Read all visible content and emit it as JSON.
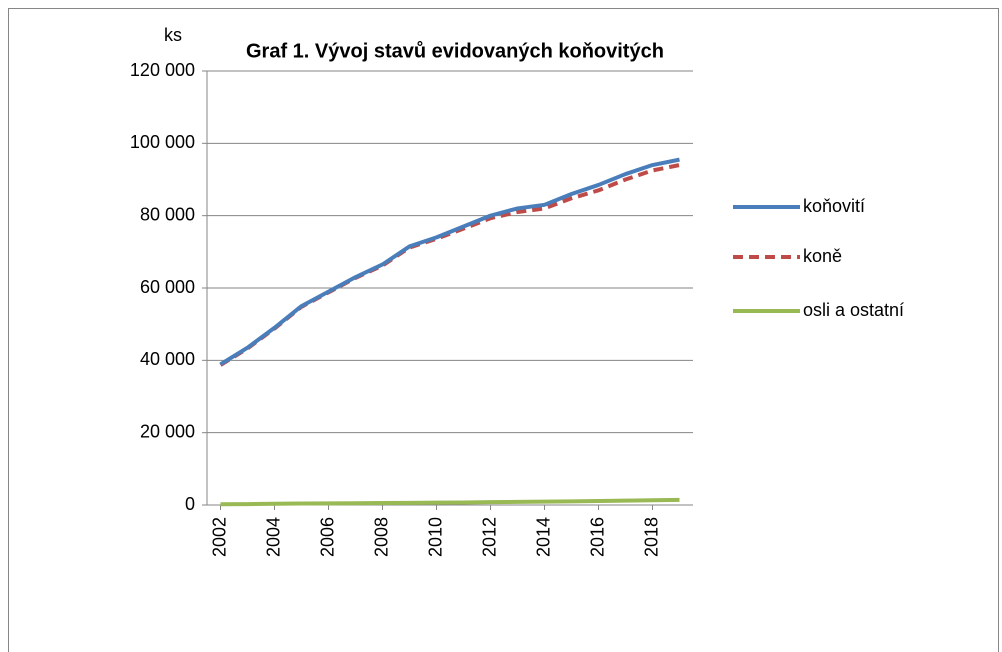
{
  "chart_data": {
    "type": "line",
    "title": "Graf 1. Vývoj stavů evidovaných koňovitých",
    "ylabel": "ks",
    "x": [
      2002,
      2003,
      2004,
      2005,
      2006,
      2007,
      2008,
      2009,
      2010,
      2011,
      2012,
      2013,
      2014,
      2015,
      2016,
      2017,
      2018,
      2019
    ],
    "xlim": [
      2001.5,
      2019.5
    ],
    "xticks": [
      2002,
      2004,
      2006,
      2008,
      2010,
      2012,
      2014,
      2016,
      2018
    ],
    "ylim": [
      0,
      120000
    ],
    "yticks": [
      0,
      {
        "value": 20000,
        "label": "20 000"
      },
      {
        "value": 40000,
        "label": "40 000"
      },
      {
        "value": 60000,
        "label": "60 000"
      },
      {
        "value": 80000,
        "label": "80 000"
      },
      {
        "value": 100000,
        "label": "100 000"
      },
      {
        "value": 120000,
        "label": "120 000"
      }
    ],
    "grid": true,
    "legend": "right",
    "series": [
      {
        "name": "koňovití",
        "color": "#4a7ebb",
        "dash": "solid",
        "values": [
          38900,
          43500,
          49000,
          55000,
          59000,
          63000,
          66500,
          71500,
          74000,
          77000,
          80000,
          82000,
          83000,
          86000,
          88500,
          91500,
          94000,
          95500
        ]
      },
      {
        "name": "koně",
        "color": "#be4b48",
        "dash": "dashed",
        "values": [
          38700,
          43300,
          48800,
          54800,
          58800,
          62800,
          66200,
          71200,
          73600,
          76400,
          79300,
          81000,
          82000,
          84800,
          87000,
          90000,
          92500,
          94000
        ]
      },
      {
        "name": "osli a ostatní",
        "color": "#98b954",
        "dash": "solid",
        "values": [
          200,
          250,
          350,
          400,
          450,
          500,
          550,
          600,
          650,
          700,
          800,
          850,
          950,
          1000,
          1100,
          1200,
          1300,
          1400
        ]
      }
    ]
  }
}
